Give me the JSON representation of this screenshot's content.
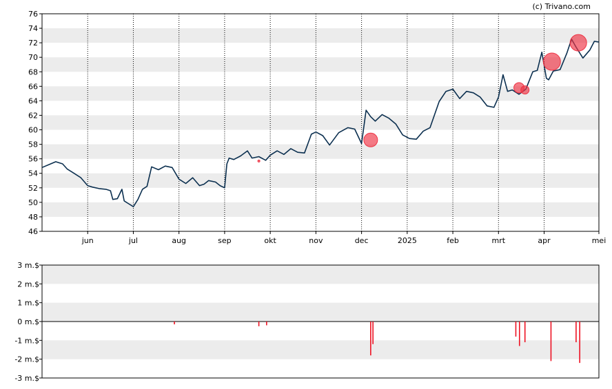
{
  "credit": "(c) Trivano.com",
  "colors": {
    "price_line": "#0b2f4f",
    "marker_fill": "#ee3344",
    "volume_bar": "#ee1122",
    "band": "#ececec",
    "month_grid": "#000000",
    "axis": "#000000"
  },
  "chart_data": [
    {
      "type": "line",
      "ylim": [
        46,
        76
      ],
      "yticks": [
        46,
        48,
        50,
        52,
        54,
        56,
        58,
        60,
        62,
        64,
        66,
        68,
        70,
        72,
        74,
        76
      ],
      "xrange": [
        0,
        12.2
      ],
      "xticks": [
        {
          "label": "jun",
          "x": 1
        },
        {
          "label": "jul",
          "x": 2
        },
        {
          "label": "aug",
          "x": 3
        },
        {
          "label": "sep",
          "x": 4
        },
        {
          "label": "okt",
          "x": 5
        },
        {
          "label": "nov",
          "x": 6
        },
        {
          "label": "dec",
          "x": 7
        },
        {
          "label": "2025",
          "x": 8
        },
        {
          "label": "feb",
          "x": 9
        },
        {
          "label": "mrt",
          "x": 10
        },
        {
          "label": "apr",
          "x": 11
        },
        {
          "label": "mei",
          "x": 12.2
        }
      ],
      "grid": "horizontal bands, dotted vertical month lines",
      "series": [
        {
          "x": [
            0,
            0.15,
            0.3,
            0.45,
            0.55,
            0.7,
            0.85,
            1.0,
            1.1,
            1.25,
            1.4,
            1.5,
            1.55,
            1.65,
            1.75,
            1.8,
            1.9,
            2.0,
            2.1,
            2.2,
            2.3,
            2.4,
            2.55,
            2.7,
            2.85,
            3.0,
            3.15,
            3.3,
            3.45,
            3.55,
            3.65,
            3.8,
            3.9,
            4.0,
            4.05,
            4.1,
            4.2,
            4.35,
            4.5,
            4.6,
            4.75,
            4.9,
            5.0,
            5.15,
            5.3,
            5.45,
            5.6,
            5.75,
            5.9,
            6.0,
            6.15,
            6.3,
            6.5,
            6.7,
            6.85,
            7.0,
            7.1,
            7.2,
            7.3,
            7.45,
            7.6,
            7.75,
            7.9,
            8.05,
            8.2,
            8.35,
            8.5,
            8.7,
            8.85,
            9.0,
            9.15,
            9.3,
            9.45,
            9.6,
            9.75,
            9.9,
            10.0,
            10.1,
            10.2,
            10.3,
            10.45,
            10.6,
            10.75,
            10.85,
            10.95,
            11.05,
            11.1,
            11.2,
            11.35,
            11.5,
            11.6,
            11.7,
            11.85,
            12.0,
            12.1,
            12.2
          ],
          "y": [
            54.8,
            55.2,
            55.6,
            55.3,
            54.6,
            54.0,
            53.4,
            52.3,
            52.1,
            51.9,
            51.8,
            51.6,
            50.4,
            50.5,
            51.8,
            50.2,
            49.8,
            49.4,
            50.4,
            51.8,
            52.2,
            54.9,
            54.5,
            55.0,
            54.8,
            53.2,
            52.6,
            53.4,
            52.3,
            52.5,
            53.0,
            52.8,
            52.3,
            52.0,
            55.3,
            56.1,
            55.9,
            56.4,
            57.1,
            56.1,
            56.3,
            55.8,
            56.5,
            57.1,
            56.6,
            57.4,
            56.9,
            56.8,
            59.4,
            59.7,
            59.2,
            57.9,
            59.6,
            60.3,
            60.1,
            58.1,
            62.7,
            61.8,
            61.2,
            62.1,
            61.6,
            60.8,
            59.3,
            58.8,
            58.7,
            59.8,
            60.3,
            63.9,
            65.3,
            65.6,
            64.3,
            65.3,
            65.1,
            64.5,
            63.3,
            63.1,
            64.5,
            67.6,
            65.3,
            65.5,
            64.9,
            65.6,
            68.0,
            68.2,
            70.7,
            67.1,
            66.9,
            68.1,
            68.3,
            70.6,
            72.5,
            71.4,
            69.9,
            71.0,
            72.2,
            72.1
          ]
        }
      ],
      "markers": [
        {
          "x": 7.2,
          "y": 58.6,
          "size": 1.0
        },
        {
          "x": 10.45,
          "y": 65.8,
          "size": 0.75
        },
        {
          "x": 10.58,
          "y": 65.5,
          "size": 0.6
        },
        {
          "x": 11.17,
          "y": 69.4,
          "size": 1.25
        },
        {
          "x": 11.75,
          "y": 72.0,
          "size": 1.2
        },
        {
          "x": 4.75,
          "y": 55.7,
          "size": 0.15
        }
      ]
    },
    {
      "type": "bar",
      "ylim": [
        -3,
        3
      ],
      "yticks": [
        {
          "value": 3,
          "label": "3 m.$"
        },
        {
          "value": 2,
          "label": "2 m.$"
        },
        {
          "value": 1,
          "label": "1 m.$"
        },
        {
          "value": 0,
          "label": "0 m.$"
        },
        {
          "value": -1,
          "label": "-1 m.$"
        },
        {
          "value": -2,
          "label": "-2 m.$"
        },
        {
          "value": -3,
          "label": "-3 m.$"
        }
      ],
      "grid": "horizontal bands",
      "x": [
        2.9,
        4.75,
        4.92,
        7.2,
        7.25,
        10.38,
        10.46,
        10.58,
        11.15,
        11.7,
        11.78
      ],
      "values": [
        -0.15,
        -0.25,
        -0.2,
        -1.8,
        -1.2,
        -0.8,
        -1.3,
        -1.1,
        -2.1,
        -1.1,
        -2.2
      ]
    }
  ]
}
